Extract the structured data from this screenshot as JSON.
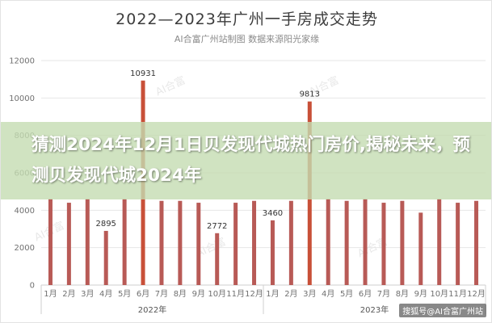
{
  "banner_text": "猜测2024年12月1日贝发现代城热门房价,揭秘未来，预测贝发现代城2024年",
  "watermark": "搜狐号@AI合富广州站",
  "bg_watermark": "AI合富",
  "colors": {
    "bar": "#b85a56",
    "bar_hl": "#c85038",
    "banner": "#c4dcb2",
    "grid": "#e6e6e6"
  },
  "chart_data": {
    "type": "bar",
    "title": "2022—2023年广州一手房成交走势",
    "subtitle": "AI合富广州站制图 数据来源阳光家缘",
    "categories": [
      "1月",
      "2月",
      "3月",
      "4月",
      "5月",
      "6月",
      "7月",
      "8月",
      "9月",
      "10月",
      "11月",
      "12月",
      "1月",
      "2月",
      "3月",
      "4月",
      "5月",
      "6月",
      "7月",
      "8月",
      "9月",
      "10月",
      "11月",
      "12月"
    ],
    "values": [
      4600,
      4400,
      4600,
      2895,
      4600,
      10931,
      4500,
      4500,
      4400,
      2772,
      4400,
      4500,
      3460,
      4500,
      9813,
      4600,
      4500,
      4600,
      4400,
      4500,
      3870,
      4600,
      4400,
      4500
    ],
    "data_labels": [
      {
        "index": 3,
        "text": "2895"
      },
      {
        "index": 5,
        "text": "10931"
      },
      {
        "index": 9,
        "text": "2772"
      },
      {
        "index": 12,
        "text": "3460"
      },
      {
        "index": 14,
        "text": "9813"
      }
    ],
    "highlight": [
      5,
      14
    ],
    "year_groups": [
      {
        "label": "2022年",
        "start": 0,
        "end": 11
      },
      {
        "label": "2023年",
        "start": 12,
        "end": 23
      }
    ],
    "yticks": [
      0,
      2000,
      4000,
      6000,
      8000,
      10000,
      12000
    ],
    "ylim": [
      0,
      12000
    ],
    "xlabel": "",
    "ylabel": "",
    "grid": true,
    "legend": "none"
  }
}
